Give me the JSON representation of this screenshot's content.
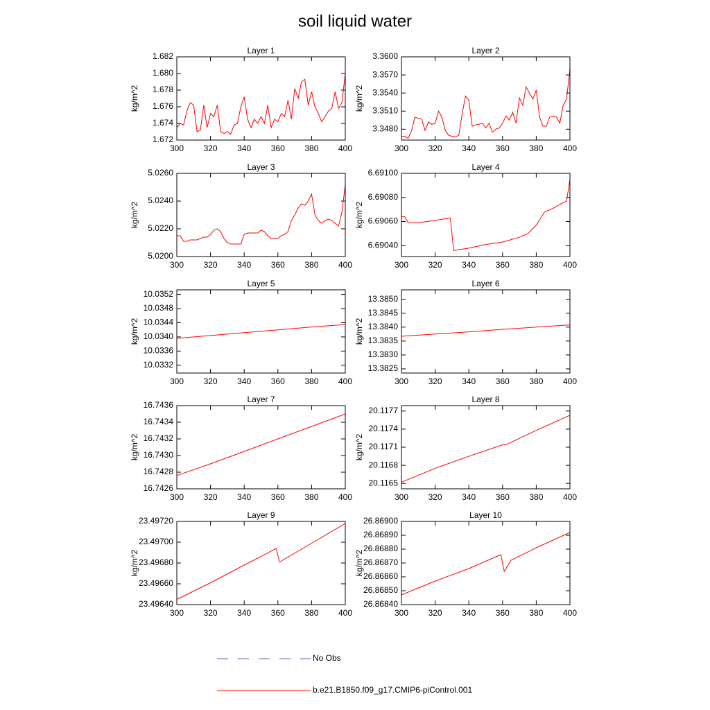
{
  "title": "soil liquid water",
  "legend": [
    {
      "label": "No Obs",
      "color": "#5566bb",
      "dash": true
    },
    {
      "label": "b.e21.B1850.f09_g17.CMIP6-piControl.001",
      "color": "#ff0000",
      "dash": false
    }
  ],
  "chart_data": [
    {
      "type": "line",
      "title": "Layer 1",
      "y_label": "kg/m^2",
      "color": "#ff0000",
      "x": [
        300,
        302,
        304,
        306,
        308,
        310,
        312,
        314,
        316,
        318,
        320,
        322,
        324,
        326,
        328,
        330,
        332,
        334,
        336,
        338,
        340,
        342,
        344,
        346,
        348,
        350,
        352,
        354,
        356,
        358,
        360,
        362,
        364,
        366,
        368,
        370,
        372,
        374,
        376,
        378,
        380,
        382,
        384,
        386,
        388,
        390,
        392,
        394,
        396,
        398,
        400
      ],
      "values": [
        1.6735,
        1.674,
        1.6738,
        1.6755,
        1.6765,
        1.6762,
        1.673,
        1.6732,
        1.6762,
        1.6735,
        1.6752,
        1.6748,
        1.6762,
        1.673,
        1.6728,
        1.673,
        1.6727,
        1.6738,
        1.674,
        1.676,
        1.6772,
        1.6745,
        1.6735,
        1.6745,
        1.674,
        1.6748,
        1.674,
        1.6762,
        1.6735,
        1.6745,
        1.6742,
        1.6752,
        1.6748,
        1.6768,
        1.6745,
        1.6782,
        1.677,
        1.679,
        1.6793,
        1.6762,
        1.6778,
        1.676,
        1.6752,
        1.6742,
        1.6748,
        1.6755,
        1.6758,
        1.6778,
        1.6758,
        1.6765,
        1.68
      ],
      "xlim": [
        300,
        400
      ],
      "xticks": [
        300,
        320,
        340,
        360,
        380,
        400
      ],
      "ylim": [
        1.672,
        1.682
      ],
      "yticks": [
        1.672,
        1.674,
        1.676,
        1.678,
        {
          "value": 1.68,
          "label": "1.680"
        },
        1.682
      ]
    },
    {
      "type": "line",
      "title": "Layer 2",
      "y_label": "kg/m^2",
      "color": "#ff0000",
      "x": [
        300,
        302,
        304,
        306,
        308,
        310,
        312,
        314,
        316,
        318,
        320,
        322,
        324,
        326,
        328,
        330,
        332,
        334,
        336,
        338,
        340,
        342,
        344,
        346,
        348,
        350,
        352,
        354,
        356,
        358,
        360,
        362,
        364,
        366,
        368,
        370,
        372,
        374,
        376,
        378,
        380,
        382,
        384,
        386,
        388,
        390,
        392,
        394,
        396,
        398,
        400
      ],
      "values": [
        3.3468,
        3.3468,
        3.3465,
        3.3478,
        3.35,
        3.3498,
        3.3497,
        3.3478,
        3.3492,
        3.3488,
        3.349,
        3.351,
        3.35,
        3.3478,
        3.347,
        3.3468,
        3.3467,
        3.347,
        3.3505,
        3.3535,
        3.3528,
        3.3485,
        3.3487,
        3.3488,
        3.349,
        3.3482,
        3.349,
        3.3475,
        3.348,
        3.3482,
        3.349,
        3.3502,
        3.3495,
        3.3508,
        3.349,
        3.3532,
        3.352,
        3.355,
        3.354,
        3.353,
        3.3545,
        3.35,
        3.3485,
        3.3485,
        3.35,
        3.3502,
        3.35,
        3.349,
        3.352,
        3.353,
        3.358
      ],
      "xlim": [
        300,
        400
      ],
      "xticks": [
        300,
        320,
        340,
        360,
        380,
        400
      ],
      "ylim": [
        3.3462,
        3.36
      ],
      "yticks": [
        {
          "value": 3.348,
          "label": "3.3480"
        },
        {
          "value": 3.351,
          "label": "3.3510"
        },
        {
          "value": 3.354,
          "label": "3.3540"
        },
        {
          "value": 3.357,
          "label": "3.3570"
        },
        {
          "value": 3.36,
          "label": "3.3600"
        }
      ]
    },
    {
      "type": "line",
      "title": "Layer 3",
      "y_label": "kg/m^2",
      "color": "#ff0000",
      "x": [
        300,
        302,
        304,
        306,
        308,
        310,
        312,
        314,
        316,
        318,
        320,
        322,
        324,
        326,
        328,
        330,
        332,
        334,
        336,
        338,
        340,
        342,
        344,
        346,
        348,
        350,
        352,
        354,
        356,
        358,
        360,
        362,
        364,
        366,
        368,
        370,
        372,
        374,
        376,
        378,
        380,
        382,
        384,
        386,
        388,
        390,
        392,
        394,
        396,
        398,
        400
      ],
      "values": [
        5.0215,
        5.0215,
        5.0211,
        5.0211,
        5.0212,
        5.0212,
        5.0212,
        5.0213,
        5.0214,
        5.0214,
        5.0216,
        5.0219,
        5.022,
        5.0218,
        5.0213,
        5.021,
        5.0209,
        5.0209,
        5.0209,
        5.0209,
        5.0216,
        5.0217,
        5.0217,
        5.0217,
        5.0217,
        5.0219,
        5.0218,
        5.0215,
        5.0213,
        5.0213,
        5.0213,
        5.0215,
        5.0216,
        5.0218,
        5.0226,
        5.023,
        5.0235,
        5.0238,
        5.0237,
        5.024,
        5.0245,
        5.023,
        5.0226,
        5.0224,
        5.0226,
        5.0227,
        5.0226,
        5.0224,
        5.0222,
        5.0232,
        5.0252
      ],
      "xlim": [
        300,
        400
      ],
      "xticks": [
        300,
        320,
        340,
        360,
        380,
        400
      ],
      "ylim": [
        5.02,
        5.026
      ],
      "yticks": [
        {
          "value": 5.02,
          "label": "5.0200"
        },
        {
          "value": 5.022,
          "label": "5.0220"
        },
        {
          "value": 5.024,
          "label": "5.0240"
        },
        {
          "value": 5.026,
          "label": "5.0260"
        }
      ]
    },
    {
      "type": "line",
      "title": "Layer 4",
      "y_label": "kg/m^2",
      "color": "#ff0000",
      "x": [
        300,
        302,
        304,
        310,
        320,
        329,
        331,
        340,
        350,
        360,
        370,
        375,
        380,
        385,
        390,
        395,
        398,
        400
      ],
      "values": [
        6.69064,
        6.69064,
        6.69059,
        6.69059,
        6.69061,
        6.69063,
        6.69036,
        6.69038,
        6.69041,
        6.69043,
        6.69047,
        6.6905,
        6.69057,
        6.69068,
        6.69071,
        6.69075,
        6.69077,
        6.69095
      ],
      "xlim": [
        300,
        400
      ],
      "xticks": [
        300,
        320,
        340,
        360,
        380,
        400
      ],
      "ylim": [
        6.69031,
        6.691
      ],
      "yticks": [
        {
          "value": 6.6904,
          "label": "6.69040"
        },
        {
          "value": 6.6906,
          "label": "6.69060"
        },
        {
          "value": 6.6908,
          "label": "6.69080"
        },
        {
          "value": 6.691,
          "label": "6.69100"
        }
      ]
    },
    {
      "type": "line",
      "title": "Layer 5",
      "y_label": "kg/m^2",
      "color": "#ff0000",
      "x": [
        300,
        320,
        340,
        360,
        380,
        400
      ],
      "values": [
        10.03396,
        10.03404,
        10.03412,
        10.0342,
        10.03428,
        10.03435
      ],
      "xlim": [
        300,
        400
      ],
      "xticks": [
        300,
        320,
        340,
        360,
        380,
        400
      ],
      "ylim": [
        10.03298,
        10.03533
      ],
      "yticks": [
        10.0332,
        10.0336,
        {
          "value": 10.034,
          "label": "10.0340"
        },
        10.0344,
        10.0348,
        10.0352
      ]
    },
    {
      "type": "line",
      "title": "Layer 6",
      "y_label": "kg/m^2",
      "color": "#ff0000",
      "x": [
        300,
        320,
        340,
        360,
        380,
        400
      ],
      "values": [
        13.38367,
        13.38375,
        13.38383,
        13.38392,
        13.384,
        13.38408
      ],
      "xlim": [
        300,
        400
      ],
      "xticks": [
        300,
        320,
        340,
        360,
        380,
        400
      ],
      "ylim": [
        13.38235,
        13.38534
      ],
      "yticks": [
        13.3825,
        {
          "value": 13.383,
          "label": "13.3830"
        },
        13.3835,
        {
          "value": 13.384,
          "label": "13.3840"
        },
        13.3845,
        {
          "value": 13.385,
          "label": "13.3850"
        }
      ]
    },
    {
      "type": "line",
      "title": "Layer 7",
      "y_label": "kg/m^2",
      "color": "#ff0000",
      "x": [
        300,
        320,
        340,
        360,
        380,
        400
      ],
      "values": [
        16.74276,
        16.7429,
        16.74305,
        16.7432,
        16.74335,
        16.7435
      ],
      "xlim": [
        300,
        400
      ],
      "xticks": [
        300,
        320,
        340,
        360,
        380,
        400
      ],
      "ylim": [
        16.7426,
        16.7436
      ],
      "yticks": [
        16.7426,
        16.7428,
        {
          "value": 16.743,
          "label": "16.7430"
        },
        16.7432,
        16.7434,
        16.7436
      ]
    },
    {
      "type": "line",
      "title": "Layer 8",
      "y_label": "kg/m^2",
      "color": "#ff0000",
      "x": [
        300,
        320,
        340,
        360,
        362,
        380,
        400
      ],
      "values": [
        20.11652,
        20.11675,
        20.11695,
        20.11714,
        20.11714,
        20.11738,
        20.11763
      ],
      "xlim": [
        300,
        400
      ],
      "xticks": [
        300,
        320,
        340,
        360,
        380,
        400
      ],
      "ylim": [
        20.11641,
        20.11779
      ],
      "yticks": [
        20.1165,
        20.1168,
        20.1171,
        20.1174,
        20.1177
      ]
    },
    {
      "type": "line",
      "title": "Layer 9",
      "y_label": "kg/m^2",
      "color": "#ff0000",
      "x": [
        300,
        320,
        340,
        359,
        361,
        380,
        400
      ],
      "values": [
        23.49645,
        23.49661,
        23.49678,
        23.49694,
        23.49681,
        23.49699,
        23.49718
      ],
      "xlim": [
        300,
        400
      ],
      "xticks": [
        300,
        320,
        340,
        360,
        380,
        400
      ],
      "ylim": [
        23.4964,
        23.4972
      ],
      "yticks": [
        {
          "value": 23.4964,
          "label": "23.49640"
        },
        {
          "value": 23.4966,
          "label": "23.49660"
        },
        {
          "value": 23.4968,
          "label": "23.49680"
        },
        {
          "value": 23.497,
          "label": "23.49700"
        },
        {
          "value": 23.4972,
          "label": "23.49720"
        }
      ]
    },
    {
      "type": "line",
      "title": "Layer 10",
      "y_label": "kg/m^2",
      "color": "#ff0000",
      "x": [
        300,
        320,
        340,
        359,
        361,
        365,
        380,
        400
      ],
      "values": [
        26.86847,
        26.86857,
        26.86866,
        26.86876,
        26.86864,
        26.86872,
        26.86881,
        26.86892
      ],
      "xlim": [
        300,
        400
      ],
      "xticks": [
        300,
        320,
        340,
        360,
        380,
        400
      ],
      "ylim": [
        26.8684,
        26.869
      ],
      "yticks": [
        {
          "value": 26.8684,
          "label": "26.86840"
        },
        {
          "value": 26.8685,
          "label": "26.86850"
        },
        {
          "value": 26.8686,
          "label": "26.86860"
        },
        {
          "value": 26.8687,
          "label": "26.86870"
        },
        {
          "value": 26.8688,
          "label": "26.86880"
        },
        {
          "value": 26.8689,
          "label": "26.86890"
        },
        {
          "value": 26.869,
          "label": "26.86900"
        }
      ]
    }
  ]
}
